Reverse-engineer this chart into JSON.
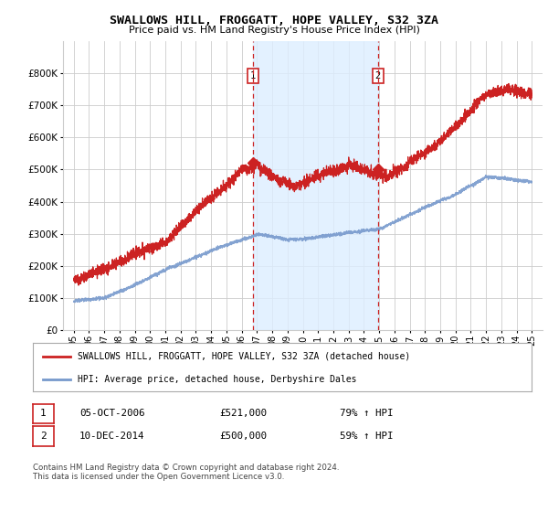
{
  "title": "SWALLOWS HILL, FROGGATT, HOPE VALLEY, S32 3ZA",
  "subtitle": "Price paid vs. HM Land Registry's House Price Index (HPI)",
  "legend_line1": "SWALLOWS HILL, FROGGATT, HOPE VALLEY, S32 3ZA (detached house)",
  "legend_line2": "HPI: Average price, detached house, Derbyshire Dales",
  "annotation1": {
    "num": "1",
    "date": "05-OCT-2006",
    "price": "£521,000",
    "pct": "79% ↑ HPI"
  },
  "annotation2": {
    "num": "2",
    "date": "10-DEC-2014",
    "price": "£500,000",
    "pct": "59% ↑ HPI"
  },
  "footer": "Contains HM Land Registry data © Crown copyright and database right 2024.\nThis data is licensed under the Open Government Licence v3.0.",
  "sale1_date_num": 2006.75,
  "sale1_price": 521000,
  "sale2_date_num": 2014.92,
  "sale2_price": 500000,
  "red_color": "#cc2222",
  "blue_color": "#7799cc",
  "vline_color": "#cc2222",
  "shade_color": "#ddeeff",
  "grid_color": "#cccccc",
  "bg_color": "#ffffff",
  "ylim": [
    0,
    900000
  ],
  "yticks": [
    0,
    100000,
    200000,
    300000,
    400000,
    500000,
    600000,
    700000,
    800000
  ],
  "ytick_labels": [
    "£0",
    "£100K",
    "£200K",
    "£300K",
    "£400K",
    "£500K",
    "£600K",
    "£700K",
    "£800K"
  ],
  "xlim_start": 1994.3,
  "xlim_end": 2025.7,
  "xtick_years": [
    1995,
    1996,
    1997,
    1998,
    1999,
    2000,
    2001,
    2002,
    2003,
    2004,
    2005,
    2006,
    2007,
    2008,
    2009,
    2010,
    2011,
    2012,
    2013,
    2014,
    2015,
    2016,
    2017,
    2018,
    2019,
    2020,
    2021,
    2022,
    2023,
    2024,
    2025
  ]
}
